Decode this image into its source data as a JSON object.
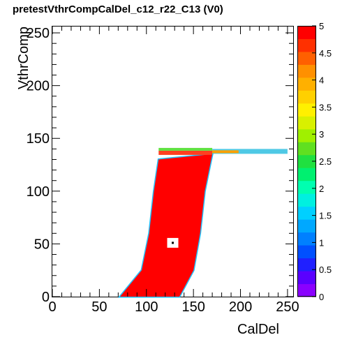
{
  "title": "pretestVthrCompCalDel_c12_r22_C13 (V0)",
  "chart_data": {
    "type": "heatmap",
    "title": "pretestVthrCompCalDel_c12_r22_C13 (V0)",
    "xlabel": "CalDel",
    "ylabel": "VthrComp",
    "xlim": [
      0,
      256
    ],
    "ylim": [
      0,
      256
    ],
    "x_ticks": [
      0,
      50,
      100,
      150,
      200,
      250
    ],
    "y_ticks": [
      0,
      50,
      100,
      150,
      200,
      250
    ],
    "colorbar": {
      "range": [
        0,
        5
      ],
      "ticks": [
        "0",
        "0.5",
        "1",
        "1.5",
        "2",
        "2.5",
        "3",
        "3.5",
        "4",
        "4.5",
        "5"
      ]
    },
    "region": {
      "description_value": "saturated at 5 inside the efficient band, lower values along the edges",
      "value": 5,
      "bottom_edge_y": 0,
      "top_edge_y": 135,
      "left_boundary": [
        [
          72,
          0
        ],
        [
          95,
          25
        ],
        [
          103,
          60
        ],
        [
          108,
          100
        ],
        [
          113,
          130
        ]
      ],
      "right_boundary": [
        [
          135,
          0
        ],
        [
          150,
          25
        ],
        [
          157,
          60
        ],
        [
          162,
          100
        ],
        [
          170,
          135
        ]
      ],
      "plateau": {
        "x_range": [
          170,
          250
        ],
        "y": 138,
        "value": 2
      }
    },
    "marker": {
      "x": 128,
      "y": 51
    }
  }
}
